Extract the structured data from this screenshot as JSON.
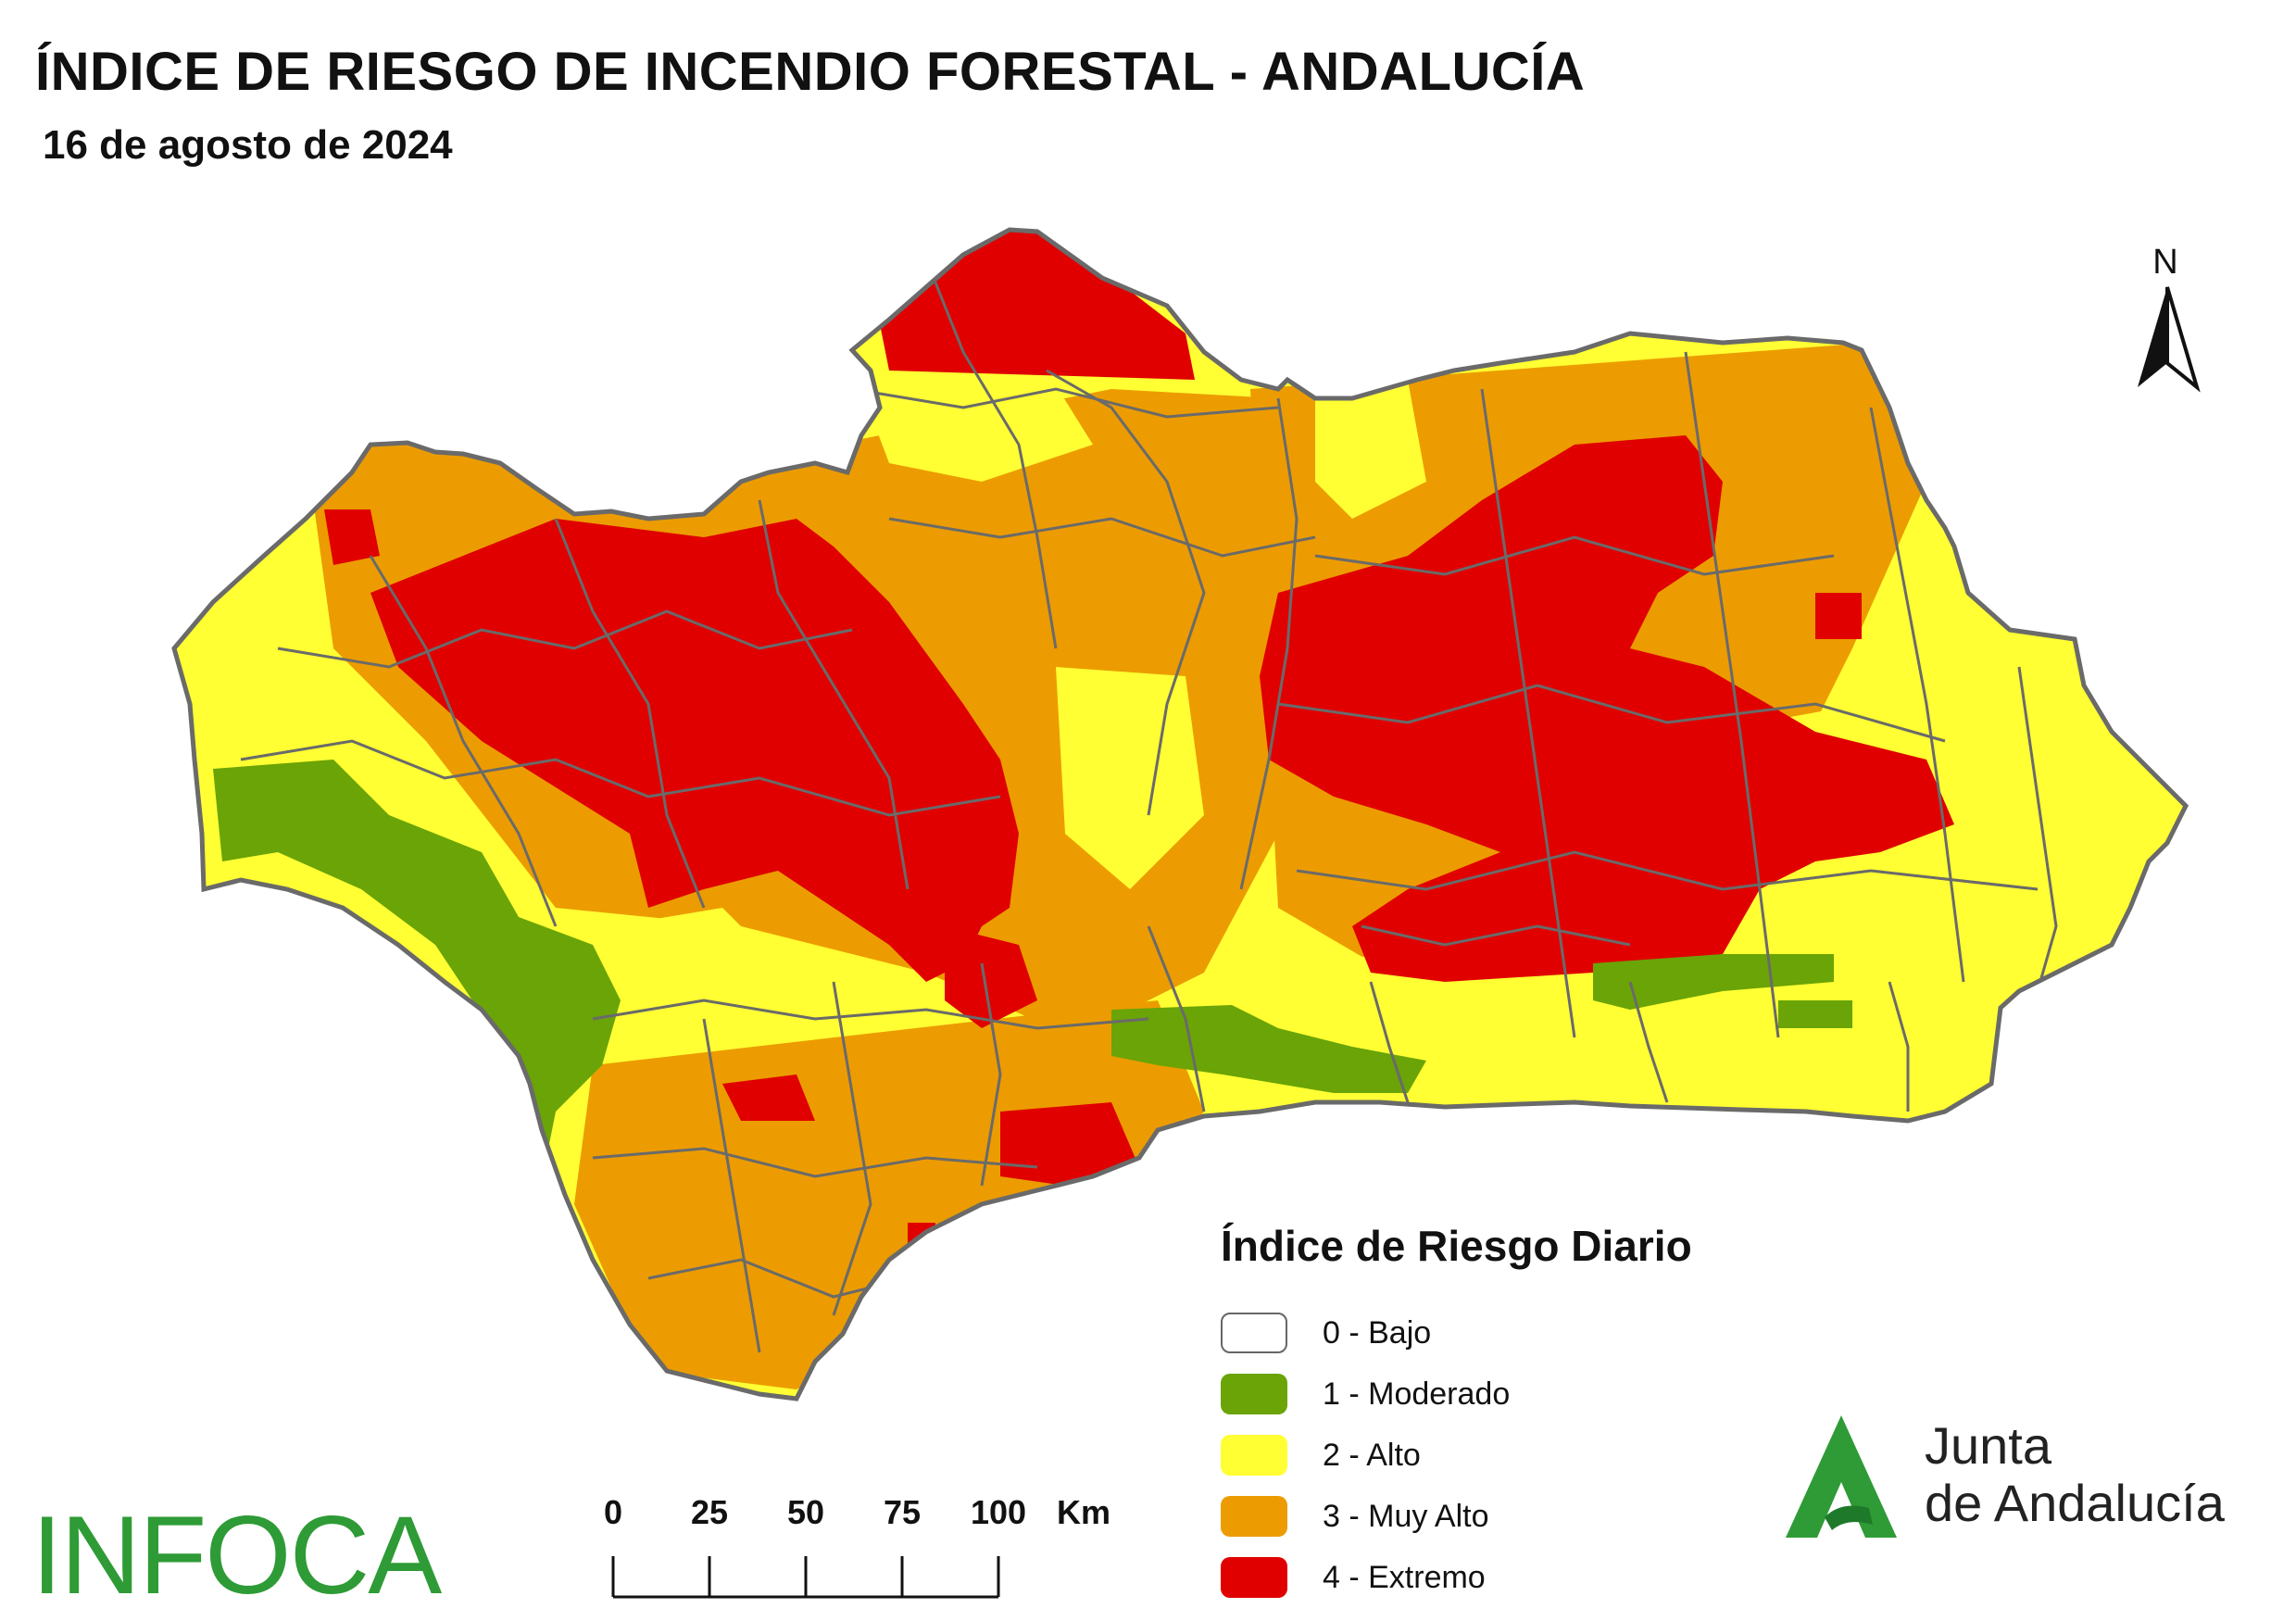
{
  "header": {
    "title": "ÍNDICE DE RIESGO DE INCENDIO FORESTAL - ANDALUCÍA",
    "date": "16 de agosto de 2024"
  },
  "north_arrow": {
    "label": "N"
  },
  "legend": {
    "title": "Índice de Riesgo Diario",
    "items": [
      {
        "label": "0 - Bajo",
        "color": "#ffffff"
      },
      {
        "label": "1 - Moderado",
        "color": "#6aa406"
      },
      {
        "label": "2 - Alto",
        "color": "#ffff33"
      },
      {
        "label": "3 - Muy Alto",
        "color": "#ec9c00"
      },
      {
        "label": "4 - Extremo",
        "color": "#e00000"
      }
    ]
  },
  "scale_bar": {
    "ticks": [
      "0",
      "25",
      "50",
      "75",
      "100"
    ],
    "unit": "Km"
  },
  "logos": {
    "infoca": "INFOCA",
    "junta_line1": "Junta",
    "junta_line2": "de Andalucía"
  },
  "colors": {
    "boundary": "#6a6a6a",
    "logo_green": "#2e9b36"
  }
}
